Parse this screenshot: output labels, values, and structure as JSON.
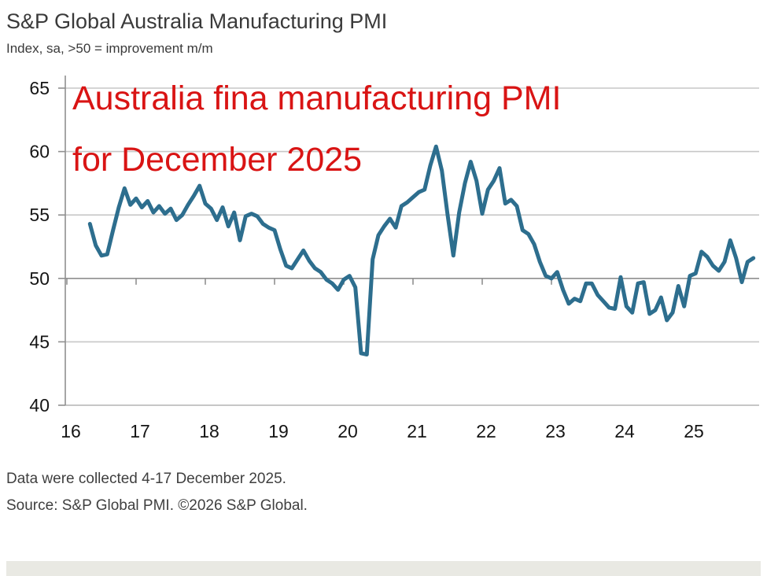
{
  "header": {
    "title": "S&P Global Australia Manufacturing PMI",
    "subtitle": "Index, sa, >50 = improvement m/m"
  },
  "annotation": {
    "line1": "Australia fina manufacturing PMI",
    "line2": "for December 2025",
    "color": "#d91414"
  },
  "footer": {
    "line1": "Data were collected 4-17 December 2025.",
    "line2": "Source: S&P Global PMI. ©2026 S&P Global."
  },
  "bottom_bar_color": "#e9e9e3",
  "chart_data": {
    "type": "line",
    "title": "S&P Global Australia Manufacturing PMI",
    "ylabel": "Index, sa, >50 = improvement m/m",
    "ylim": [
      40,
      65
    ],
    "yticks": [
      65,
      60,
      55,
      50,
      45,
      40
    ],
    "xticks": [
      "16",
      "17",
      "18",
      "19",
      "20",
      "21",
      "22",
      "23",
      "24",
      "25"
    ],
    "grid": "horizontal",
    "threshold": 50,
    "line_color": "#2d6e8e",
    "series": [
      {
        "name": "Australia Manufacturing PMI",
        "start": "2016-05",
        "frequency": "monthly",
        "values": [
          54.3,
          52.6,
          51.8,
          51.9,
          53.8,
          55.6,
          57.1,
          55.8,
          56.3,
          55.6,
          56.1,
          55.2,
          55.7,
          55.1,
          55.5,
          54.6,
          55.0,
          55.8,
          56.5,
          57.3,
          55.9,
          55.5,
          54.6,
          55.6,
          54.1,
          55.2,
          53.0,
          54.9,
          55.1,
          54.9,
          54.3,
          54.0,
          53.8,
          52.3,
          51.0,
          50.8,
          51.5,
          52.2,
          51.4,
          50.8,
          50.5,
          49.9,
          49.6,
          49.1,
          49.9,
          50.2,
          49.3,
          44.1,
          44.0,
          51.5,
          53.4,
          54.1,
          54.7,
          54.0,
          55.7,
          56.0,
          56.4,
          56.8,
          57.0,
          58.9,
          60.4,
          58.5,
          55.0,
          51.8,
          55.2,
          57.5,
          59.2,
          57.7,
          55.1,
          57.0,
          57.7,
          58.7,
          55.9,
          56.2,
          55.7,
          53.8,
          53.5,
          52.7,
          51.3,
          50.2,
          50.0,
          50.5,
          49.1,
          48.0,
          48.4,
          48.2,
          49.6,
          49.6,
          48.7,
          48.2,
          47.7,
          47.6,
          50.1,
          47.8,
          47.3,
          49.6,
          49.7,
          47.2,
          47.5,
          48.5,
          46.7,
          47.3,
          49.4,
          47.8,
          50.2,
          50.4,
          52.1,
          51.7,
          51.0,
          50.6,
          51.3,
          53.0,
          51.6,
          49.7,
          51.3,
          51.6
        ]
      }
    ]
  }
}
